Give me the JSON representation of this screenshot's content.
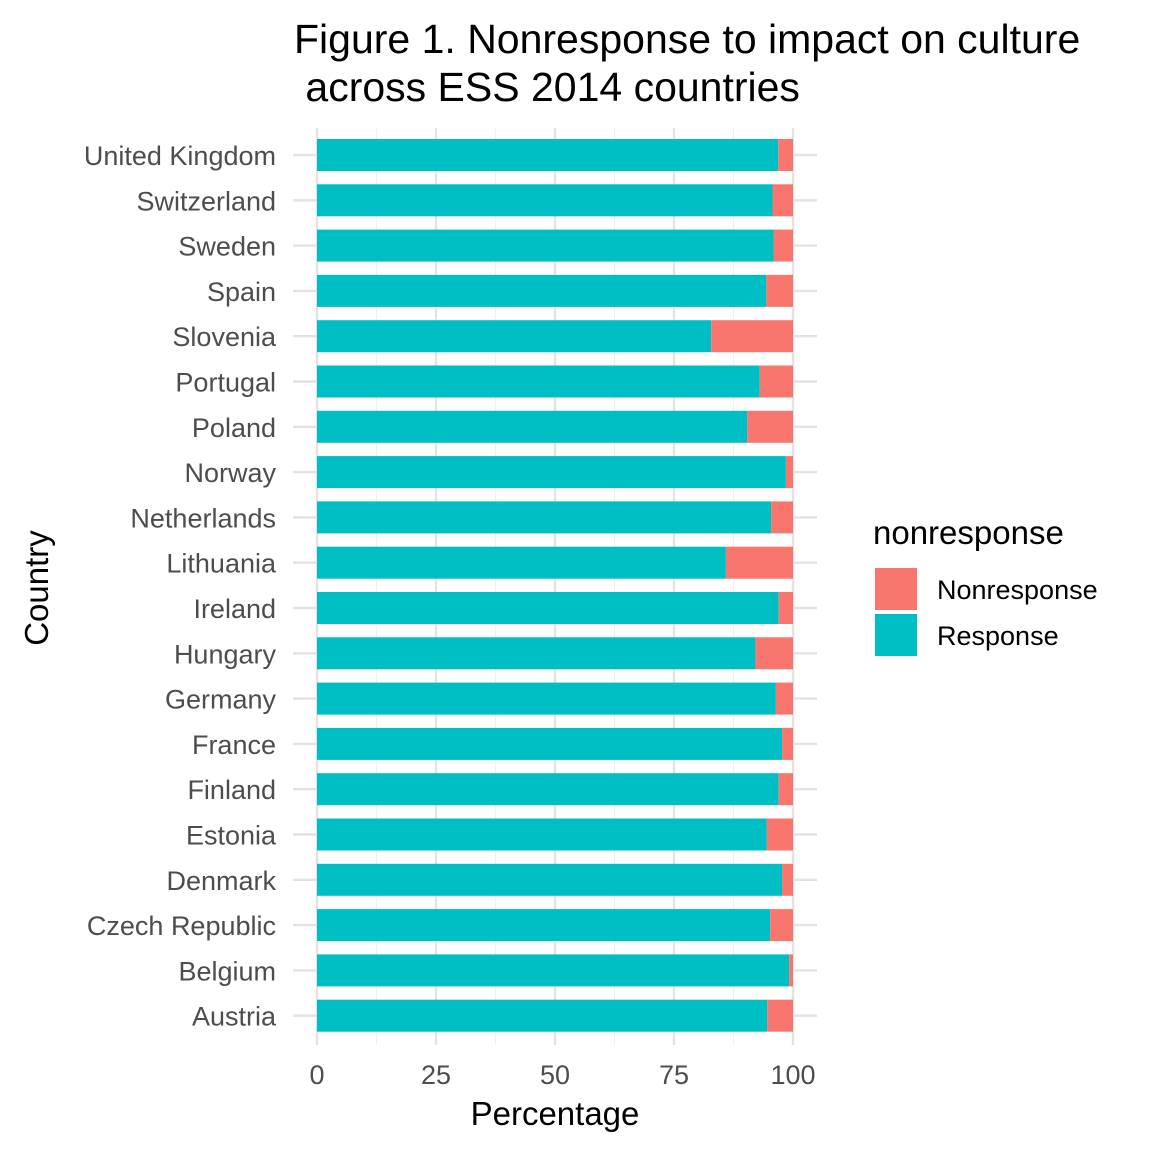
{
  "chart_data": {
    "type": "bar",
    "orientation": "horizontal",
    "stacked": true,
    "title_lines": [
      "Figure 1. Nonresponse to impact on culture",
      " across ESS 2014 countries"
    ],
    "xlabel": "Percentage",
    "ylabel": "Country",
    "xlim": [
      0,
      100
    ],
    "xticks": [
      "0",
      "25",
      "50",
      "75",
      "100"
    ],
    "grid": true,
    "legend_title": "nonresponse",
    "legend_position": "right",
    "categories": [
      "Austria",
      "Belgium",
      "Czech Republic",
      "Denmark",
      "Estonia",
      "Finland",
      "France",
      "Germany",
      "Hungary",
      "Ireland",
      "Lithuania",
      "Netherlands",
      "Norway",
      "Poland",
      "Portugal",
      "Slovenia",
      "Spain",
      "Sweden",
      "Switzerland",
      "United Kingdom"
    ],
    "series": [
      {
        "name": "Nonresponse",
        "color": "#F8766D",
        "values": [
          5.4,
          0.8,
          4.8,
          2.3,
          5.5,
          3.0,
          2.3,
          3.6,
          7.9,
          3.0,
          14.1,
          4.6,
          1.5,
          9.6,
          7.0,
          17.2,
          5.6,
          4.1,
          4.3,
          3.1
        ]
      },
      {
        "name": "Response",
        "color": "#00BFC4",
        "values": [
          94.6,
          99.2,
          95.2,
          97.7,
          94.5,
          97.0,
          97.7,
          96.4,
          92.1,
          97.0,
          85.9,
          95.4,
          98.5,
          90.4,
          93.0,
          82.8,
          94.4,
          95.9,
          95.7,
          96.9
        ]
      }
    ]
  }
}
